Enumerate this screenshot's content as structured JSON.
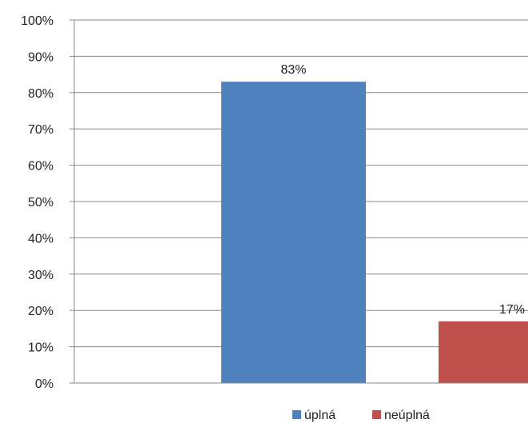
{
  "chart_data": {
    "type": "bar",
    "series": [
      {
        "name": "úplná",
        "values": [
          83
        ],
        "color": "#4F81BD"
      },
      {
        "name": "neúplná",
        "values": [
          17
        ],
        "color": "#C0504D"
      }
    ],
    "data_labels": [
      "83%",
      "17%"
    ],
    "y_ticks": [
      "0%",
      "10%",
      "20%",
      "30%",
      "40%",
      "50%",
      "60%",
      "70%",
      "80%",
      "90%",
      "100%"
    ],
    "ylim": [
      0,
      100
    ],
    "grid": true,
    "legend_position": "bottom"
  }
}
